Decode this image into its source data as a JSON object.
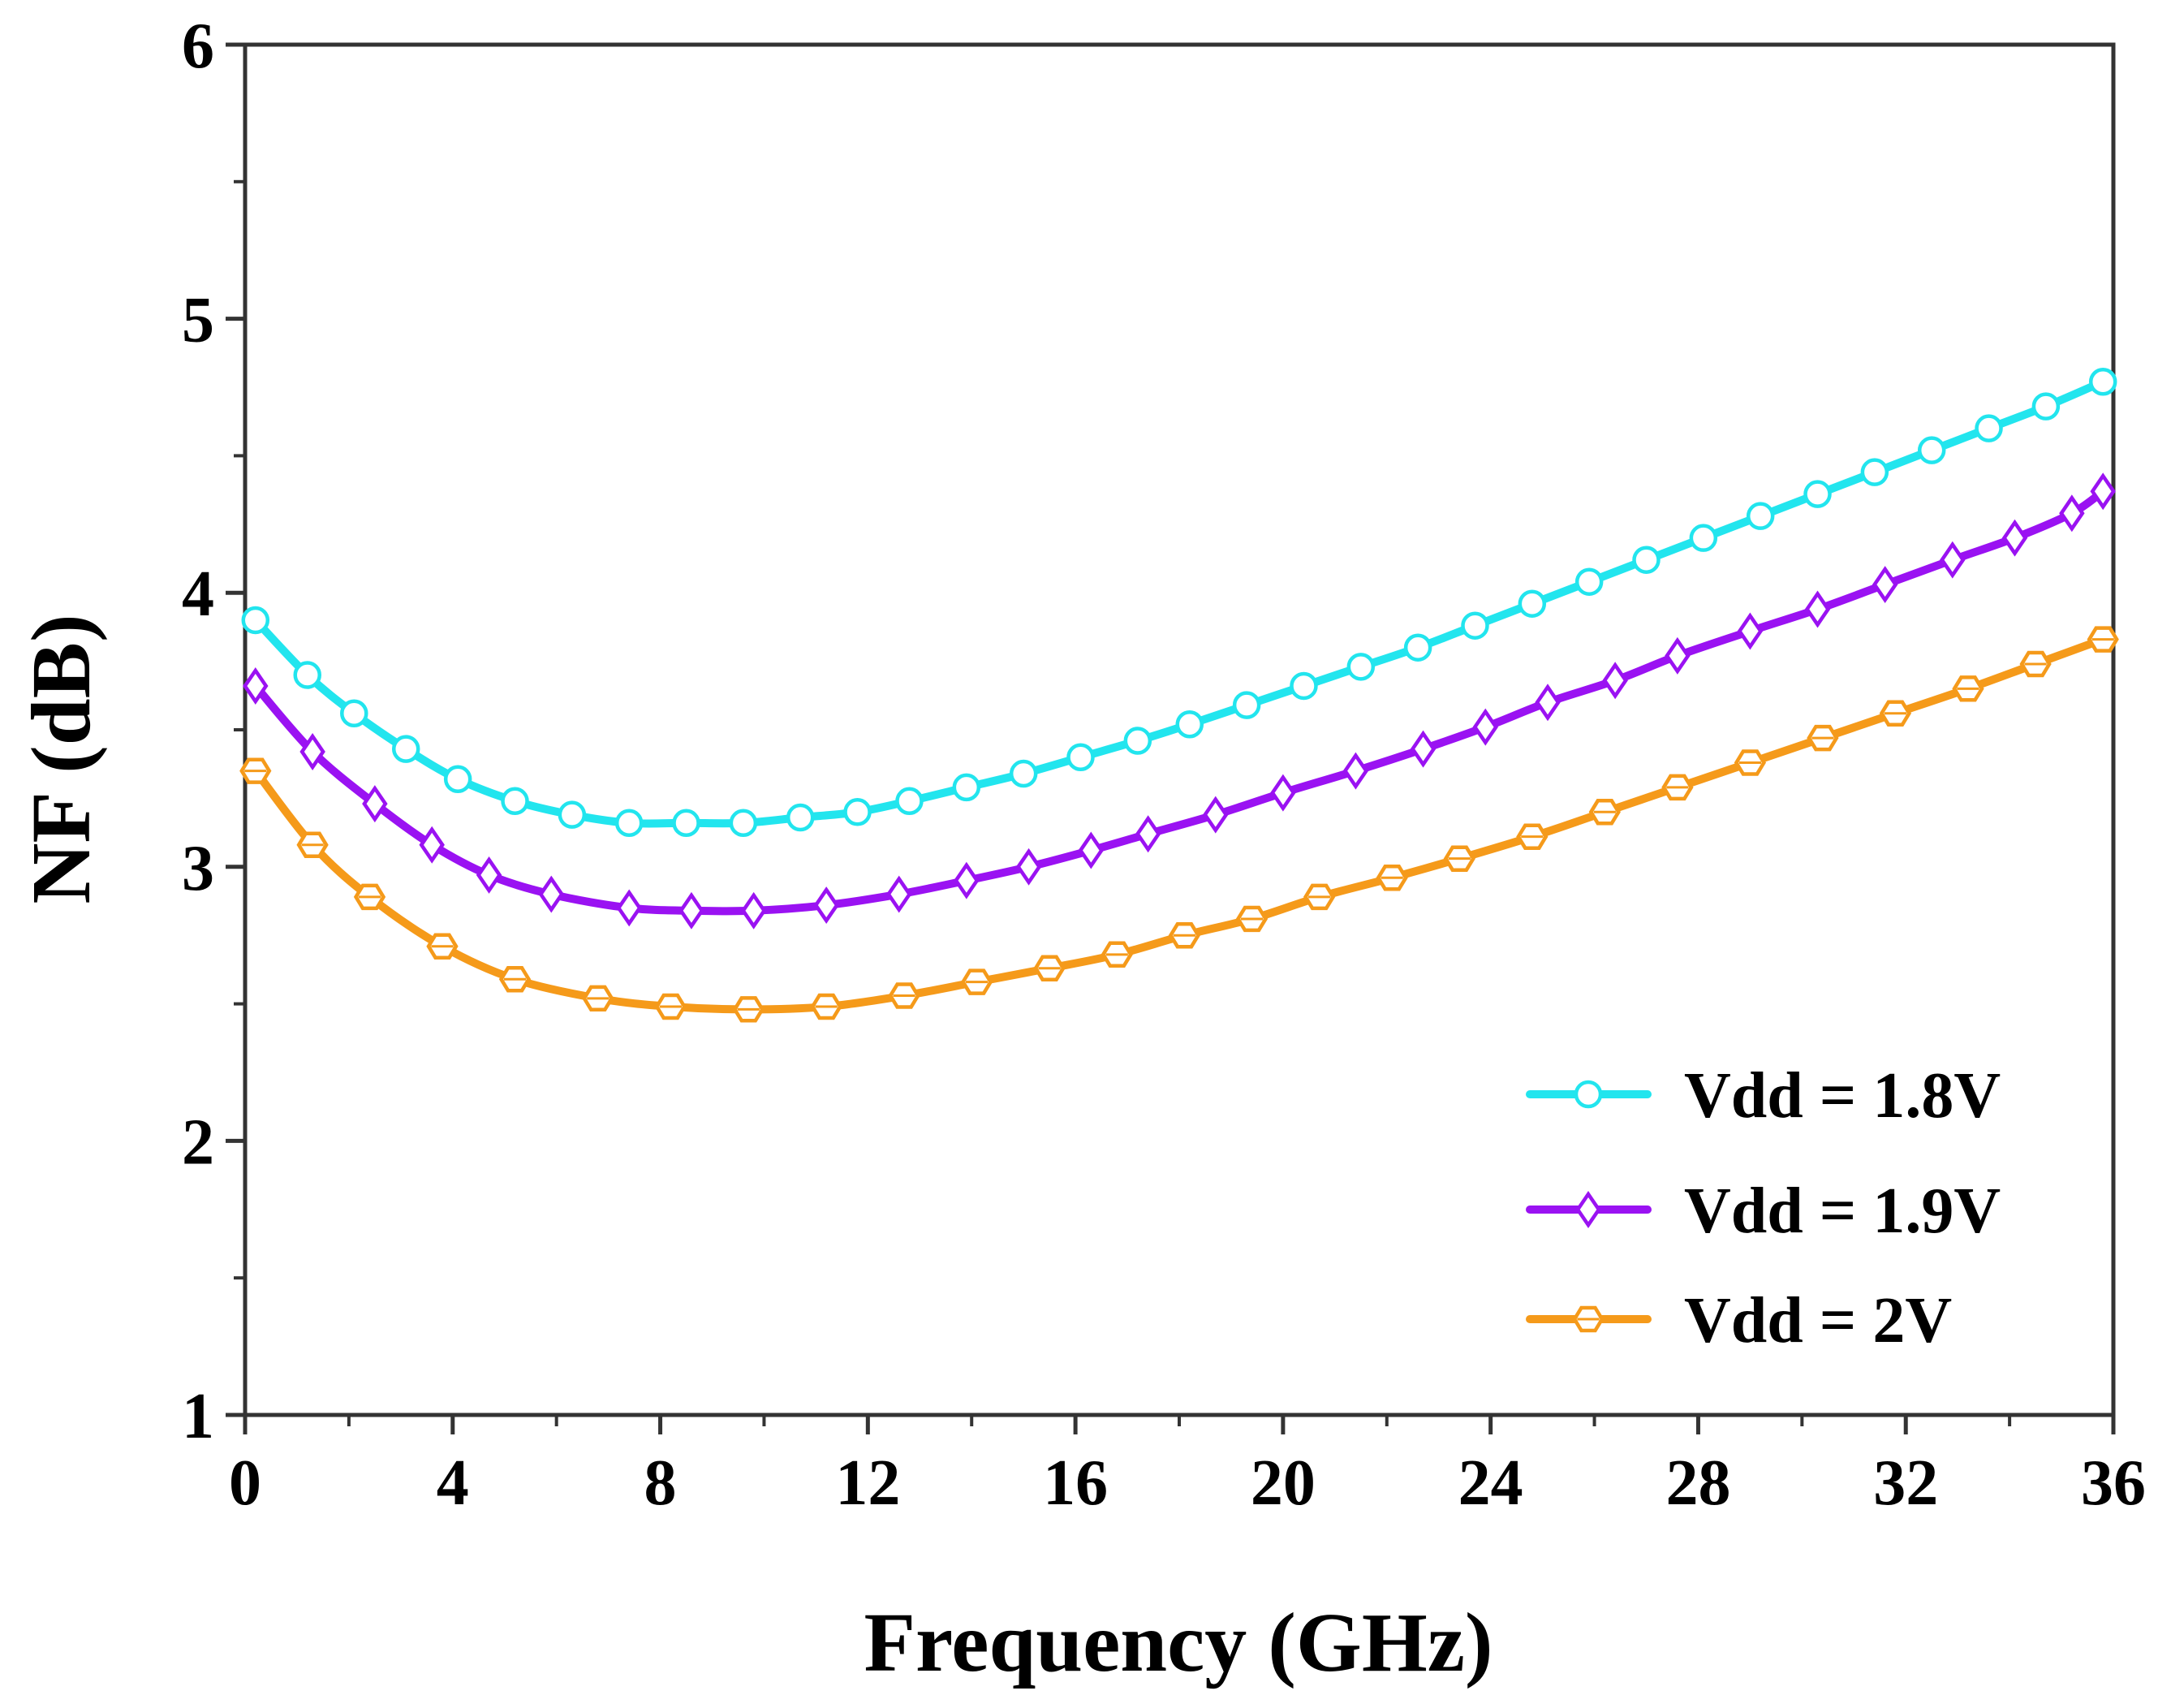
{
  "chart_data": {
    "type": "line",
    "title": "",
    "xlabel": "Frequency (GHz)",
    "ylabel": "NF (dB)",
    "xlim": [
      0,
      36
    ],
    "ylim": [
      1,
      6
    ],
    "xticks": [
      0,
      4,
      8,
      12,
      16,
      20,
      24,
      28,
      32,
      36
    ],
    "yticks": [
      1,
      2,
      3,
      4,
      5,
      6
    ],
    "xtick_labels": [
      "0",
      "4",
      "8",
      "12",
      "16",
      "20",
      "24",
      "28",
      "32",
      "36"
    ],
    "ytick_labels": [
      "1",
      "2",
      "3",
      "4",
      "5",
      "6"
    ],
    "grid": false,
    "legend_position": "bottom-right",
    "series": [
      {
        "name": "Vdd = 1.8V",
        "color": "#22E5EE",
        "marker": "circle",
        "x": [
          0.2,
          1.2,
          2.1,
          3.1,
          4.1,
          5.2,
          6.3,
          7.4,
          8.5,
          9.6,
          10.7,
          11.8,
          12.8,
          13.9,
          15.0,
          16.1,
          17.2,
          18.2,
          19.3,
          20.4,
          21.5,
          22.6,
          23.7,
          24.8,
          25.9,
          27.0,
          28.1,
          29.2,
          30.3,
          31.4,
          32.5,
          33.6,
          34.7,
          35.8
        ],
        "y": [
          3.9,
          3.7,
          3.56,
          3.43,
          3.32,
          3.24,
          3.19,
          3.16,
          3.16,
          3.16,
          3.18,
          3.2,
          3.24,
          3.29,
          3.34,
          3.4,
          3.46,
          3.52,
          3.59,
          3.66,
          3.73,
          3.8,
          3.88,
          3.96,
          4.04,
          4.12,
          4.2,
          4.28,
          4.36,
          4.44,
          4.52,
          4.6,
          4.68,
          4.77
        ]
      },
      {
        "name": "Vdd = 1.9V",
        "color": "#9A12F2",
        "marker": "diamond",
        "x": [
          0.2,
          1.3,
          2.5,
          3.6,
          4.7,
          5.9,
          7.4,
          8.6,
          9.8,
          11.2,
          12.6,
          13.9,
          15.1,
          16.3,
          17.4,
          18.7,
          20.0,
          21.4,
          22.7,
          23.9,
          25.1,
          26.4,
          27.6,
          29.0,
          30.3,
          31.6,
          32.9,
          34.1,
          35.2,
          35.8
        ],
        "y": [
          3.66,
          3.42,
          3.23,
          3.08,
          2.97,
          2.9,
          2.85,
          2.84,
          2.84,
          2.86,
          2.9,
          2.95,
          3.0,
          3.06,
          3.12,
          3.19,
          3.27,
          3.35,
          3.43,
          3.51,
          3.6,
          3.68,
          3.77,
          3.86,
          3.94,
          4.03,
          4.12,
          4.2,
          4.29,
          4.37
        ]
      },
      {
        "name": "Vdd = 2V",
        "color": "#F59A1A",
        "marker": "hexagon",
        "x": [
          0.2,
          1.3,
          2.4,
          3.8,
          5.2,
          6.8,
          8.2,
          9.7,
          11.2,
          12.7,
          14.1,
          15.5,
          16.8,
          18.1,
          19.4,
          20.7,
          22.1,
          23.4,
          24.8,
          26.2,
          27.6,
          29.0,
          30.4,
          31.8,
          33.2,
          34.5,
          35.8
        ],
        "y": [
          3.35,
          3.08,
          2.89,
          2.71,
          2.59,
          2.52,
          2.49,
          2.48,
          2.49,
          2.53,
          2.58,
          2.63,
          2.68,
          2.75,
          2.81,
          2.89,
          2.96,
          3.03,
          3.11,
          3.2,
          3.29,
          3.38,
          3.47,
          3.56,
          3.65,
          3.74,
          3.83
        ]
      }
    ]
  }
}
